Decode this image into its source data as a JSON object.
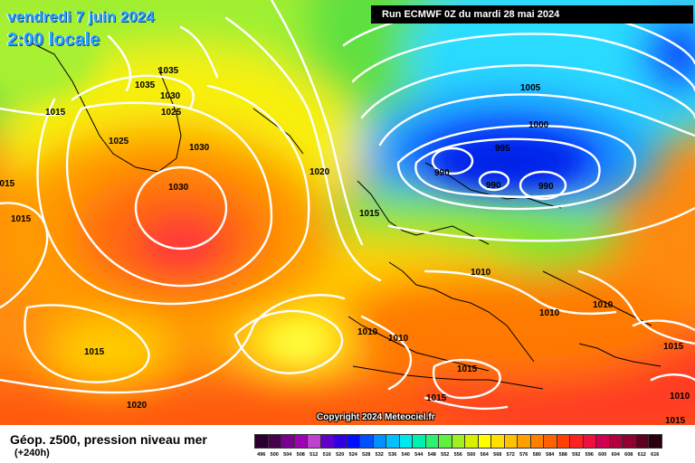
{
  "header": {
    "date_line": "vendredi 7 juin 2024",
    "time_line": "2:00 locale",
    "run_info": "Run ECMWF 0Z du mardi 28 mai 2024"
  },
  "footer": {
    "product_title": "Géop. z500, pression niveau mer",
    "lead_time": "(+240h)",
    "copyright": "Copyright 2024 Meteociel.fr"
  },
  "isobar_labels": [
    "1035",
    "1035",
    "1030",
    "1025",
    "1015",
    "1025",
    "1030",
    "1030",
    "1015",
    "1015",
    "1020",
    "1015",
    "1005",
    "1000",
    "995",
    "990",
    "990",
    "990",
    "1010",
    "1010",
    "1010",
    "1010",
    "1010",
    "1015",
    "1015",
    "1015",
    "1015",
    "1020",
    "1010",
    "1015"
  ],
  "legend": {
    "labels": [
      "496",
      "500",
      "504",
      "508",
      "512",
      "516",
      "520",
      "524",
      "528",
      "532",
      "536",
      "540",
      "544",
      "548",
      "552",
      "556",
      "560",
      "564",
      "568",
      "572",
      "576",
      "580",
      "584",
      "588",
      "592",
      "596",
      "600",
      "604",
      "608",
      "612",
      "616"
    ],
    "colors": [
      "#2a0030",
      "#4a0050",
      "#7a0090",
      "#a000b8",
      "#c040d0",
      "#6000c8",
      "#3000e0",
      "#0010ff",
      "#0050ff",
      "#0090ff",
      "#00c0ff",
      "#00e8f0",
      "#00f0b0",
      "#30f070",
      "#60f040",
      "#a0f020",
      "#d8f000",
      "#ffff00",
      "#ffe000",
      "#ffc000",
      "#ffa000",
      "#ff8000",
      "#ff6000",
      "#ff4000",
      "#ff2020",
      "#f01040",
      "#d00050",
      "#b00040",
      "#900030",
      "#600020",
      "#2a0010"
    ]
  }
}
